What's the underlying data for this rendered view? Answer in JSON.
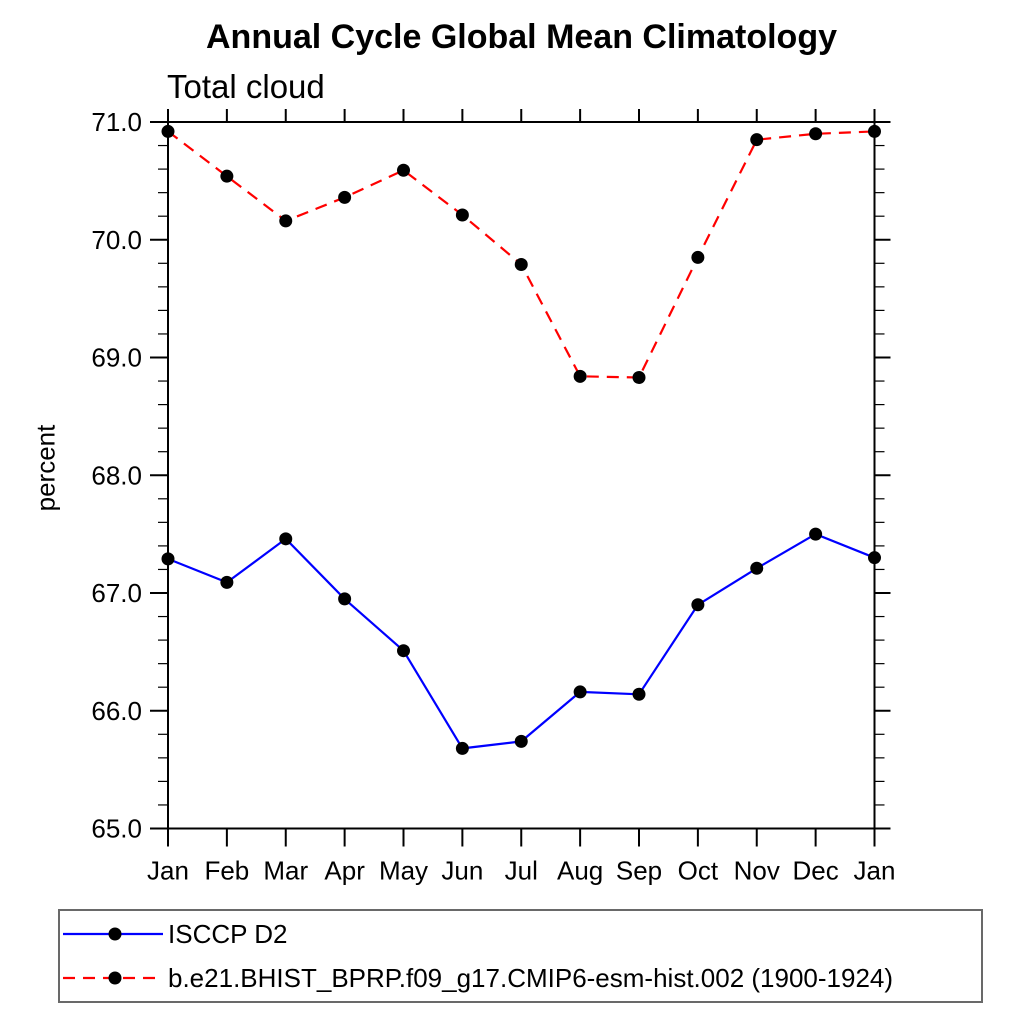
{
  "chart_data": {
    "type": "line",
    "title": "Annual Cycle Global Mean Climatology",
    "subtitle": "Total cloud",
    "ylabel": "percent",
    "xlabel": "",
    "categories": [
      "Jan",
      "Feb",
      "Mar",
      "Apr",
      "May",
      "Jun",
      "Jul",
      "Aug",
      "Sep",
      "Oct",
      "Nov",
      "Dec",
      "Jan"
    ],
    "ylim": [
      65.0,
      71.0
    ],
    "ytick_major": [
      65.0,
      66.0,
      67.0,
      68.0,
      69.0,
      70.0,
      71.0
    ],
    "ytick_labels": [
      "65.0",
      "66.0",
      "67.0",
      "68.0",
      "69.0",
      "70.0",
      "71.0"
    ],
    "ytick_minor_step": 0.2,
    "grid": false,
    "legend_position": "bottom-left-box",
    "frame_color": "#000000",
    "series": [
      {
        "name": "ISCCP D2",
        "color": "#0000ff",
        "line_style": "solid",
        "marker": "filled-circle",
        "marker_color": "#000000",
        "values": [
          67.29,
          67.09,
          67.46,
          66.95,
          66.51,
          65.68,
          65.74,
          66.16,
          66.14,
          66.9,
          67.21,
          67.5,
          67.3
        ]
      },
      {
        "name": "b.e21.BHIST_BPRP.f09_g17.CMIP6-esm-hist.002 (1900-1924)",
        "color": "#ff0000",
        "line_style": "dashed",
        "marker": "filled-circle",
        "marker_color": "#000000",
        "values": [
          70.92,
          70.54,
          70.16,
          70.36,
          70.59,
          70.21,
          69.79,
          68.84,
          68.83,
          69.85,
          70.85,
          70.9,
          70.92
        ]
      }
    ]
  }
}
